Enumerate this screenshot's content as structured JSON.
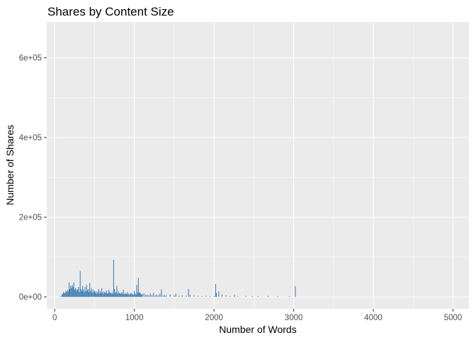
{
  "chart_data": {
    "type": "bar",
    "title": "Shares by Content Size",
    "xlabel": "Number of Words",
    "ylabel": "Number of Shares",
    "xlim": [
      -100,
      5200
    ],
    "ylim": [
      -30000,
      690000
    ],
    "x_ticks": [
      0,
      1000,
      2000,
      3000,
      4000,
      5000
    ],
    "x_tick_labels": [
      "0",
      "1000",
      "2000",
      "3000",
      "4000",
      "5000"
    ],
    "y_ticks": [
      0,
      200000,
      400000,
      600000
    ],
    "y_tick_labels": [
      "0e+00",
      "2e+05",
      "4e+05",
      "6e+05"
    ],
    "grid": true,
    "background": "#EBEBEB",
    "grid_color": "#FFFFFF",
    "bar_color": "#4682B4",
    "x": [
      70,
      90,
      100,
      110,
      120,
      130,
      140,
      150,
      160,
      170,
      180,
      190,
      200,
      210,
      220,
      230,
      240,
      250,
      260,
      270,
      280,
      290,
      300,
      310,
      320,
      330,
      340,
      350,
      360,
      370,
      380,
      390,
      400,
      410,
      420,
      430,
      440,
      450,
      460,
      470,
      480,
      490,
      500,
      510,
      520,
      530,
      540,
      550,
      560,
      570,
      580,
      590,
      600,
      610,
      620,
      630,
      640,
      650,
      660,
      670,
      680,
      690,
      700,
      710,
      720,
      730,
      740,
      750,
      760,
      770,
      780,
      790,
      800,
      810,
      820,
      830,
      840,
      850,
      860,
      870,
      880,
      890,
      900,
      910,
      920,
      930,
      940,
      950,
      960,
      970,
      980,
      990,
      1000,
      1010,
      1020,
      1030,
      1040,
      1050,
      1060,
      1070,
      1080,
      1090,
      1100,
      1120,
      1140,
      1160,
      1180,
      1200,
      1220,
      1240,
      1260,
      1280,
      1300,
      1320,
      1340,
      1360,
      1380,
      1400,
      1450,
      1500,
      1520,
      1560,
      1600,
      1650,
      1680,
      1700,
      1750,
      1800,
      1850,
      1900,
      1950,
      2000,
      2020,
      2030,
      2060,
      2100,
      2150,
      2200,
      2260,
      2300,
      2400,
      2480,
      2550,
      2680,
      2800,
      2950,
      3020
    ],
    "values": [
      2000,
      5000,
      8000,
      12000,
      10000,
      9000,
      15000,
      12000,
      18000,
      14000,
      36000,
      20000,
      28000,
      22000,
      30000,
      25000,
      36000,
      18000,
      22000,
      15000,
      20000,
      18000,
      25000,
      12000,
      65000,
      20000,
      15000,
      28000,
      18000,
      12000,
      25000,
      14000,
      30000,
      16000,
      20000,
      12000,
      35000,
      15000,
      22000,
      10000,
      18000,
      12000,
      16000,
      10000,
      14000,
      8000,
      12000,
      20000,
      10000,
      15000,
      9000,
      22000,
      12000,
      8000,
      14000,
      10000,
      11000,
      16000,
      8000,
      9000,
      18000,
      12000,
      10000,
      8000,
      12000,
      7000,
      93000,
      20000,
      10000,
      12000,
      28000,
      8000,
      14000,
      9000,
      10000,
      7000,
      12000,
      8000,
      18000,
      6000,
      10000,
      8000,
      7000,
      12000,
      6000,
      9000,
      5000,
      8000,
      10000,
      6000,
      7000,
      5000,
      15000,
      8000,
      6000,
      30000,
      12000,
      48000,
      10000,
      12000,
      8000,
      6000,
      7000,
      9000,
      5000,
      6000,
      4000,
      8000,
      5000,
      10000,
      4000,
      6000,
      4000,
      8000,
      19000,
      3000,
      5000,
      4000,
      6000,
      4000,
      8000,
      3000,
      4000,
      3000,
      20000,
      5000,
      4000,
      3000,
      2000,
      3000,
      2000,
      2000,
      32000,
      10000,
      14000,
      6000,
      4000,
      2000,
      5000,
      2000,
      3000,
      2000,
      2000,
      3000,
      2000,
      2000,
      27000
    ]
  }
}
